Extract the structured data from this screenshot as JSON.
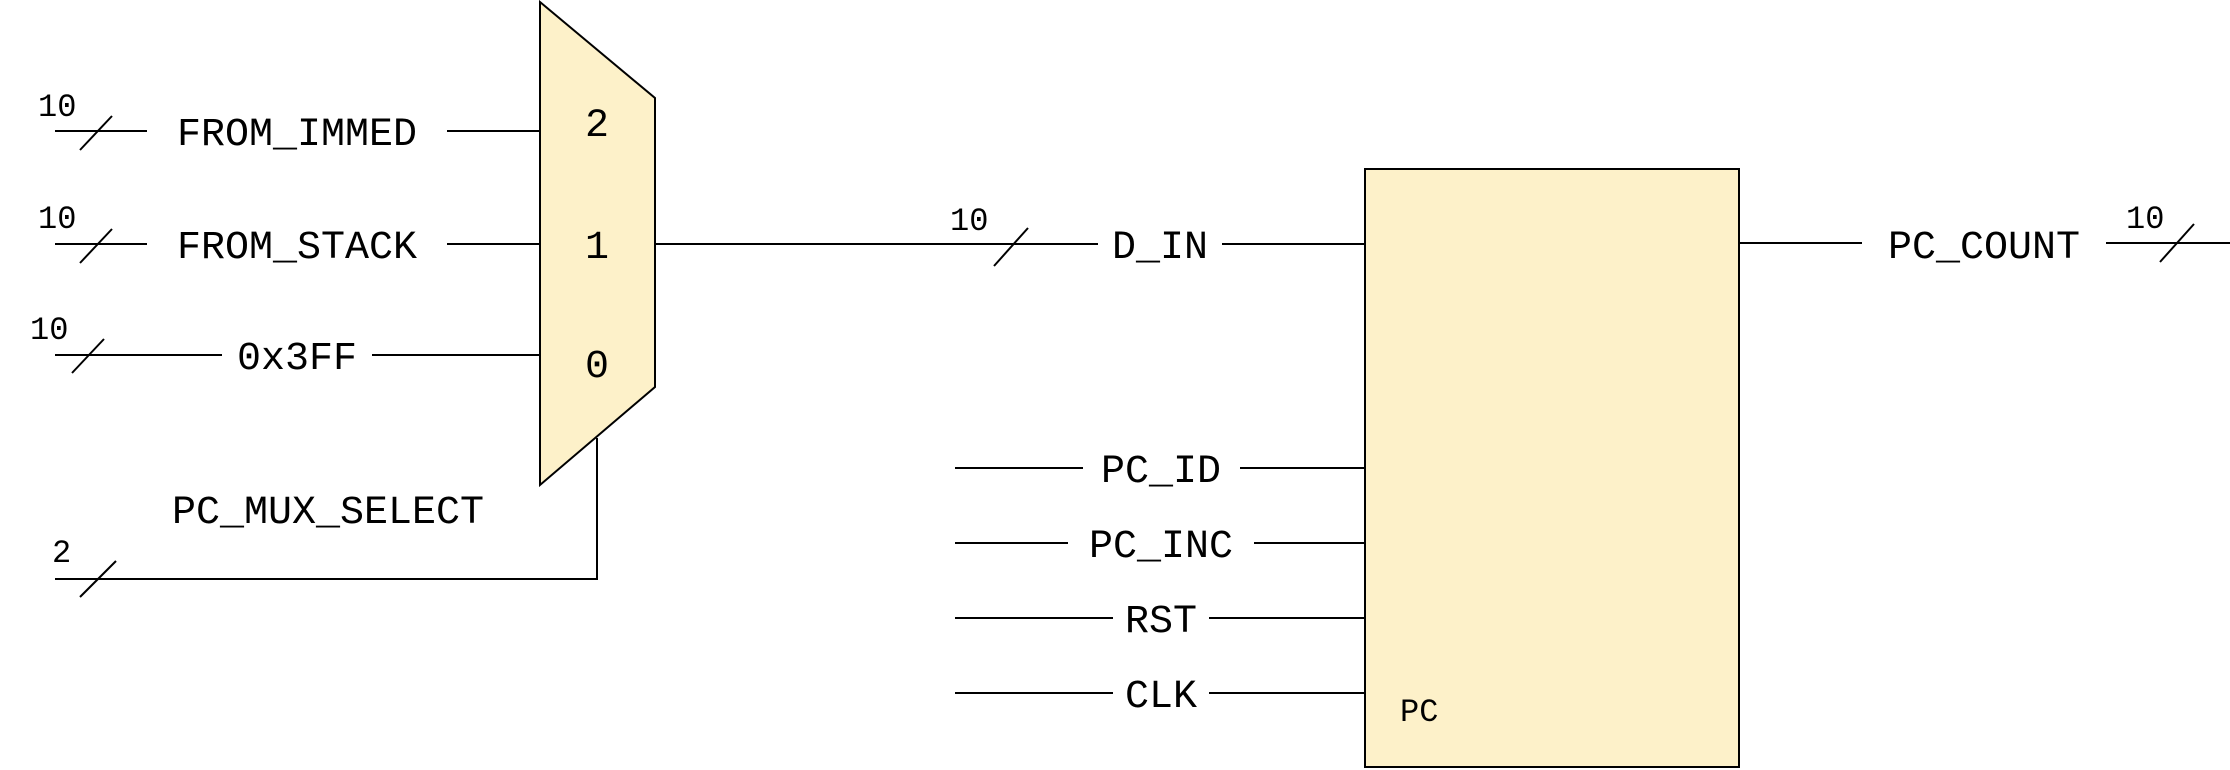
{
  "colors": {
    "block_fill": "#fdf1c9",
    "stroke": "#000000",
    "background": "#ffffff"
  },
  "mux": {
    "inputs": [
      {
        "port": "2",
        "signal": "FROM_IMMED",
        "width": "10"
      },
      {
        "port": "1",
        "signal": "FROM_STACK",
        "width": "10"
      },
      {
        "port": "0",
        "signal": "0x3FF",
        "width": "10"
      }
    ],
    "select": {
      "signal": "PC_MUX_SELECT",
      "width": "2"
    }
  },
  "bus": {
    "signal": "D_IN",
    "width": "10"
  },
  "pc": {
    "name": "PC",
    "inputs": [
      "PC_ID",
      "PC_INC",
      "RST",
      "CLK"
    ],
    "output": {
      "signal": "PC_COUNT",
      "width": "10"
    }
  }
}
